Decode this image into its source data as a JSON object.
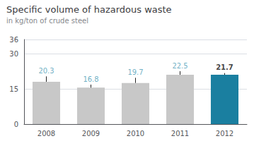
{
  "chart_data": {
    "type": "bar",
    "title": "Specific volume of hazardous waste",
    "subtitle": "in kg/ton of crude steel",
    "categories": [
      "2008",
      "2009",
      "2010",
      "2011",
      "2012"
    ],
    "series": [
      {
        "type": "bar",
        "values": [
          18.0,
          15.5,
          17.5,
          21.0,
          21.0
        ],
        "colors": [
          "#c8c8c8",
          "#c8c8c8",
          "#c8c8c8",
          "#c8c8c8",
          "#1a7fa0"
        ]
      },
      {
        "type": "scatter",
        "values": [
          20.3,
          16.8,
          19.7,
          22.5,
          21.7
        ],
        "color": "#222222",
        "colors": [
          "#4a9bb5",
          "#4a9bb5",
          "#4a9bb5",
          "#4a9bb5",
          "#111111"
        ],
        "data_labels": true
      }
    ],
    "ylim": [
      0,
      36
    ],
    "yticks": [
      0,
      15,
      30
    ],
    "grid": true
  }
}
